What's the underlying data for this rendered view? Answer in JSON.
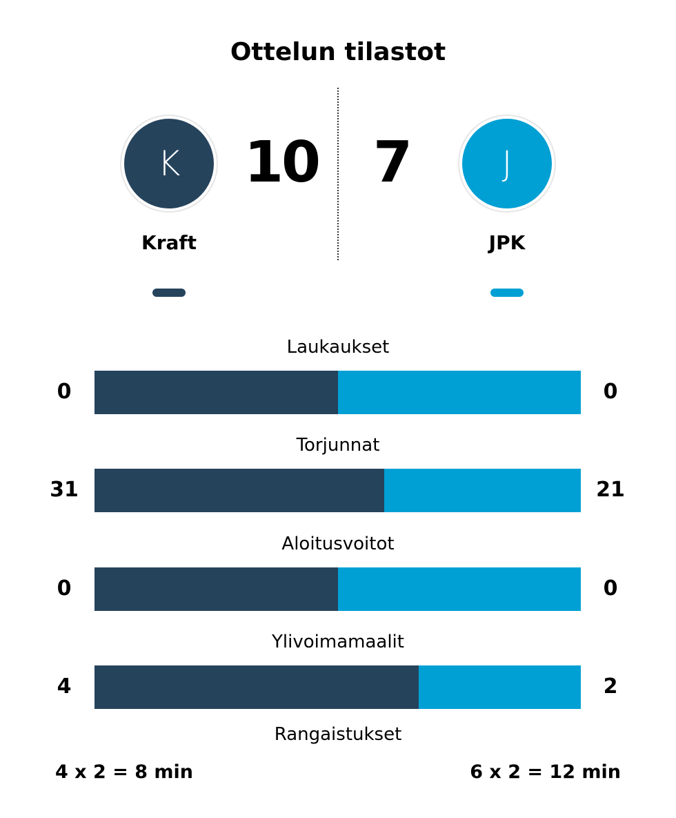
{
  "title": "Ottelun tilastot",
  "colors": {
    "home": "#26435c",
    "away": "#00a0d4"
  },
  "home": {
    "initial": "K",
    "name": "Kraft",
    "score": "10",
    "penalties": "4 x 2 = 8 min"
  },
  "away": {
    "initial": "J",
    "name": "JPK",
    "score": "7",
    "penalties": "6 x 2 = 12 min"
  },
  "chart_data": {
    "type": "bar",
    "categories": [
      "Laukaukset",
      "Torjunnat",
      "Aloitusvoitot",
      "Ylivoimamaalit"
    ],
    "series": [
      {
        "name": "Kraft",
        "values": [
          0,
          31,
          0,
          4
        ]
      },
      {
        "name": "JPK",
        "values": [
          0,
          21,
          0,
          2
        ]
      }
    ],
    "labels": {
      "home": [
        "0",
        "31",
        "0",
        "4"
      ],
      "away": [
        "0",
        "21",
        "0",
        "2"
      ]
    }
  },
  "penalties_label": "Rangaistukset"
}
